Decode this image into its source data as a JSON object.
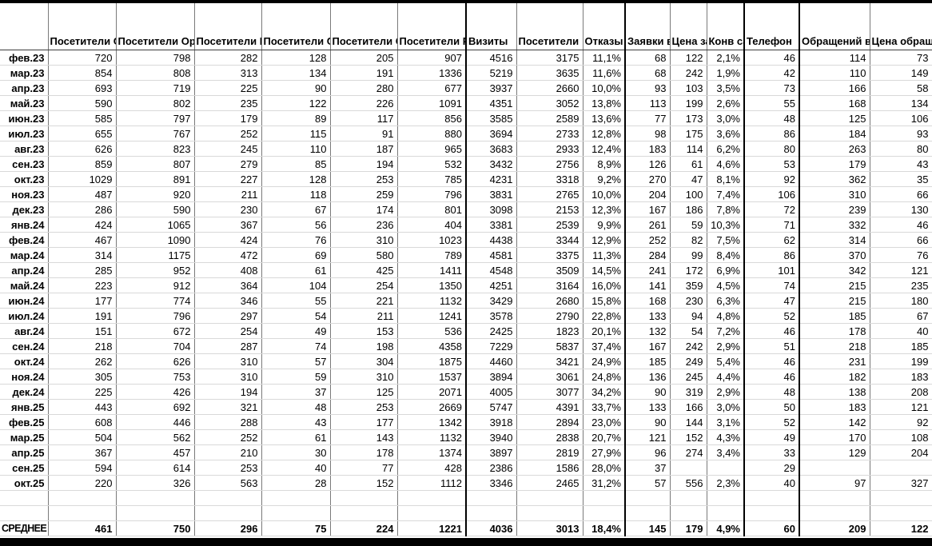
{
  "table": {
    "columns": [
      "",
      "Посетители Органика Яндекс",
      "Посетители Органика Гугл",
      "Посетители Прямые",
      "Посетители Ссылки на сайтах",
      "Посетители Соц.сети",
      "Посетители Реклама Ян.Дир",
      "Визиты",
      "Посетители",
      "Отказы",
      "Заявки все",
      "Цена заявки",
      "Конв сайта",
      "Телефон",
      "Обращений всего",
      "Цена обращения"
    ],
    "rows": [
      {
        "label": "фев.23",
        "values": [
          "720",
          "798",
          "282",
          "128",
          "205",
          "907",
          "4516",
          "3175",
          "11,1%",
          "68",
          "122",
          "2,1%",
          "46",
          "114",
          "73"
        ]
      },
      {
        "label": "мар.23",
        "values": [
          "854",
          "808",
          "313",
          "134",
          "191",
          "1336",
          "5219",
          "3635",
          "11,6%",
          "68",
          "242",
          "1,9%",
          "42",
          "110",
          "149"
        ]
      },
      {
        "label": "апр.23",
        "values": [
          "693",
          "719",
          "225",
          "90",
          "280",
          "677",
          "3937",
          "2660",
          "10,0%",
          "93",
          "103",
          "3,5%",
          "73",
          "166",
          "58"
        ]
      },
      {
        "label": "май.23",
        "values": [
          "590",
          "802",
          "235",
          "122",
          "226",
          "1091",
          "4351",
          "3052",
          "13,8%",
          "113",
          "199",
          "2,6%",
          "55",
          "168",
          "134"
        ]
      },
      {
        "label": "июн.23",
        "values": [
          "585",
          "797",
          "179",
          "89",
          "117",
          "856",
          "3585",
          "2589",
          "13,6%",
          "77",
          "173",
          "3,0%",
          "48",
          "125",
          "106"
        ]
      },
      {
        "label": "июл.23",
        "values": [
          "655",
          "767",
          "252",
          "115",
          "91",
          "880",
          "3694",
          "2733",
          "12,8%",
          "98",
          "175",
          "3,6%",
          "86",
          "184",
          "93"
        ]
      },
      {
        "label": "авг.23",
        "values": [
          "626",
          "823",
          "245",
          "110",
          "187",
          "965",
          "3683",
          "2933",
          "12,4%",
          "183",
          "114",
          "6,2%",
          "80",
          "263",
          "80"
        ]
      },
      {
        "label": "сен.23",
        "values": [
          "859",
          "807",
          "279",
          "85",
          "194",
          "532",
          "3432",
          "2756",
          "8,9%",
          "126",
          "61",
          "4,6%",
          "53",
          "179",
          "43"
        ]
      },
      {
        "label": "окт.23",
        "values": [
          "1029",
          "891",
          "227",
          "128",
          "253",
          "785",
          "4231",
          "3318",
          "9,2%",
          "270",
          "47",
          "8,1%",
          "92",
          "362",
          "35"
        ]
      },
      {
        "label": "ноя.23",
        "values": [
          "487",
          "920",
          "211",
          "118",
          "259",
          "796",
          "3831",
          "2765",
          "10,0%",
          "204",
          "100",
          "7,4%",
          "106",
          "310",
          "66"
        ]
      },
      {
        "label": "дек.23",
        "values": [
          "286",
          "590",
          "230",
          "67",
          "174",
          "801",
          "3098",
          "2153",
          "12,3%",
          "167",
          "186",
          "7,8%",
          "72",
          "239",
          "130"
        ]
      },
      {
        "label": "янв.24",
        "values": [
          "424",
          "1065",
          "367",
          "56",
          "236",
          "404",
          "3381",
          "2539",
          "9,9%",
          "261",
          "59",
          "10,3%",
          "71",
          "332",
          "46"
        ]
      },
      {
        "label": "фев.24",
        "values": [
          "467",
          "1090",
          "424",
          "76",
          "310",
          "1023",
          "4438",
          "3344",
          "12,9%",
          "252",
          "82",
          "7,5%",
          "62",
          "314",
          "66"
        ]
      },
      {
        "label": "мар.24",
        "values": [
          "314",
          "1175",
          "472",
          "69",
          "580",
          "789",
          "4581",
          "3375",
          "11,3%",
          "284",
          "99",
          "8,4%",
          "86",
          "370",
          "76"
        ]
      },
      {
        "label": "апр.24",
        "values": [
          "285",
          "952",
          "408",
          "61",
          "425",
          "1411",
          "4548",
          "3509",
          "14,5%",
          "241",
          "172",
          "6,9%",
          "101",
          "342",
          "121"
        ]
      },
      {
        "label": "май.24",
        "values": [
          "223",
          "912",
          "364",
          "104",
          "254",
          "1350",
          "4251",
          "3164",
          "16,0%",
          "141",
          "359",
          "4,5%",
          "74",
          "215",
          "235"
        ]
      },
      {
        "label": "июн.24",
        "values": [
          "177",
          "774",
          "346",
          "55",
          "221",
          "1132",
          "3429",
          "2680",
          "15,8%",
          "168",
          "230",
          "6,3%",
          "47",
          "215",
          "180"
        ]
      },
      {
        "label": "июл.24",
        "values": [
          "191",
          "796",
          "297",
          "54",
          "211",
          "1241",
          "3578",
          "2790",
          "22,8%",
          "133",
          "94",
          "4,8%",
          "52",
          "185",
          "67"
        ]
      },
      {
        "label": "авг.24",
        "values": [
          "151",
          "672",
          "254",
          "49",
          "153",
          "536",
          "2425",
          "1823",
          "20,1%",
          "132",
          "54",
          "7,2%",
          "46",
          "178",
          "40"
        ]
      },
      {
        "label": "сен.24",
        "values": [
          "218",
          "704",
          "287",
          "74",
          "198",
          "4358",
          "7229",
          "5837",
          "37,4%",
          "167",
          "242",
          "2,9%",
          "51",
          "218",
          "185"
        ]
      },
      {
        "label": "окт.24",
        "values": [
          "262",
          "626",
          "310",
          "57",
          "304",
          "1875",
          "4460",
          "3421",
          "24,9%",
          "185",
          "249",
          "5,4%",
          "46",
          "231",
          "199"
        ]
      },
      {
        "label": "ноя.24",
        "values": [
          "305",
          "753",
          "310",
          "59",
          "310",
          "1537",
          "3894",
          "3061",
          "24,8%",
          "136",
          "245",
          "4,4%",
          "46",
          "182",
          "183"
        ]
      },
      {
        "label": "дек.24",
        "values": [
          "225",
          "426",
          "194",
          "37",
          "125",
          "2071",
          "4005",
          "3077",
          "34,2%",
          "90",
          "319",
          "2,9%",
          "48",
          "138",
          "208"
        ]
      },
      {
        "label": "янв.25",
        "values": [
          "443",
          "692",
          "321",
          "48",
          "253",
          "2669",
          "5747",
          "4391",
          "33,7%",
          "133",
          "166",
          "3,0%",
          "50",
          "183",
          "121"
        ]
      },
      {
        "label": "фев.25",
        "values": [
          "608",
          "446",
          "288",
          "43",
          "177",
          "1342",
          "3918",
          "2894",
          "23,0%",
          "90",
          "144",
          "3,1%",
          "52",
          "142",
          "92"
        ]
      },
      {
        "label": "мар.25",
        "values": [
          "504",
          "562",
          "252",
          "61",
          "143",
          "1132",
          "3940",
          "2838",
          "20,7%",
          "121",
          "152",
          "4,3%",
          "49",
          "170",
          "108"
        ]
      },
      {
        "label": "апр.25",
        "values": [
          "367",
          "457",
          "210",
          "30",
          "178",
          "1374",
          "3897",
          "2819",
          "27,9%",
          "96",
          "274",
          "3,4%",
          "33",
          "129",
          "204"
        ]
      },
      {
        "label": "сен.25",
        "values": [
          "594",
          "614",
          "253",
          "40",
          "77",
          "428",
          "2386",
          "1586",
          "28,0%",
          "37",
          "",
          "",
          "29",
          "",
          ""
        ]
      },
      {
        "label": "окт.25",
        "values": [
          "220",
          "326",
          "563",
          "28",
          "152",
          "1112",
          "3346",
          "2465",
          "31,2%",
          "57",
          "556",
          "2,3%",
          "40",
          "97",
          "327"
        ]
      }
    ],
    "spacer_rows": 2,
    "average": {
      "label": "СРЕДНЕЕ",
      "values": [
        "461",
        "750",
        "296",
        "75",
        "224",
        "1221",
        "4036",
        "3013",
        "18,4%",
        "145",
        "179",
        "4,9%",
        "60",
        "209",
        "122"
      ]
    }
  }
}
